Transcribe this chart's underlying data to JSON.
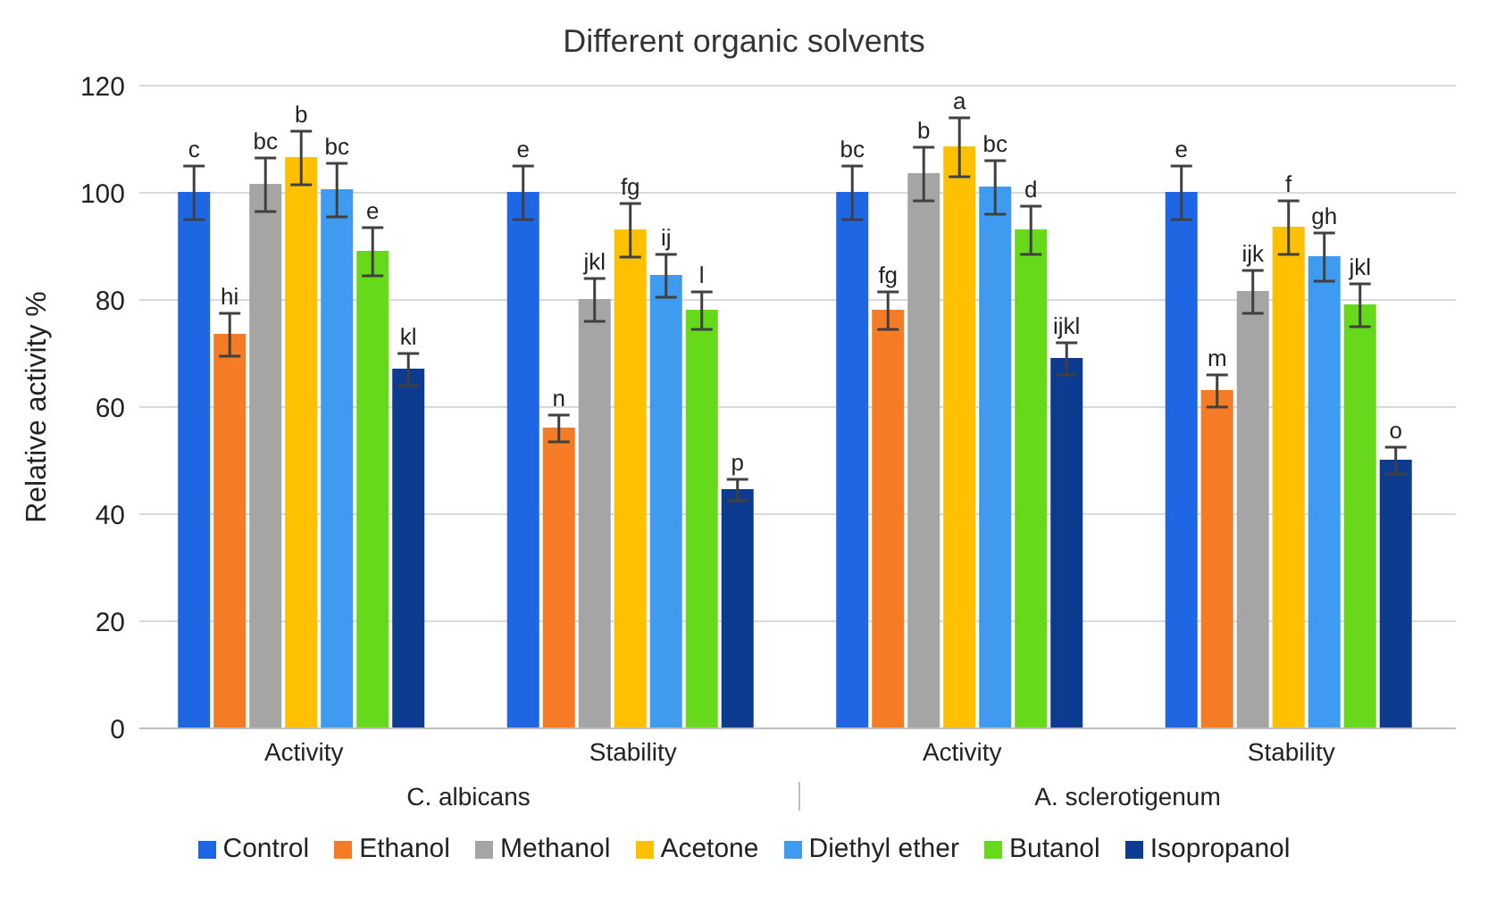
{
  "chart_data": {
    "type": "bar",
    "title": "Different organic solvents",
    "ylabel": "Relative activity %",
    "categories": [
      "Activity",
      "Stability",
      "Activity",
      "Stability"
    ],
    "annotations": [
      "C. albicans",
      "A. sclerotigenum"
    ],
    "ylim": [
      0,
      120
    ],
    "yticks": [
      0,
      20,
      40,
      60,
      80,
      100,
      120
    ],
    "grid": "y",
    "legend": "bottom",
    "series": [
      {
        "name": "Control",
        "color": "#1f66e5",
        "values": [
          100,
          100,
          100,
          100
        ],
        "errors": [
          5,
          5,
          5,
          5
        ],
        "value_labels": [
          "c",
          "e",
          "bc",
          "e"
        ]
      },
      {
        "name": "Ethanol",
        "color": "#f57c24",
        "values": [
          73.5,
          56,
          78,
          63
        ],
        "errors": [
          4,
          2.5,
          3.5,
          3
        ],
        "value_labels": [
          "hi",
          "n",
          "fg",
          "m"
        ]
      },
      {
        "name": "Methanol",
        "color": "#a5a5a5",
        "values": [
          101.5,
          80,
          103.5,
          81.5
        ],
        "errors": [
          5,
          4,
          5,
          4
        ],
        "value_labels": [
          "bc",
          "jkl",
          "b",
          "ijk"
        ]
      },
      {
        "name": "Acetone",
        "color": "#ffc000",
        "values": [
          106.5,
          93,
          108.5,
          93.5
        ],
        "errors": [
          5,
          5,
          5.5,
          5
        ],
        "value_labels": [
          "b",
          "fg",
          "a",
          "f"
        ]
      },
      {
        "name": "Diethyl ether",
        "color": "#3f9bf0",
        "values": [
          100.5,
          84.5,
          101,
          88
        ],
        "errors": [
          5,
          4,
          5,
          4.5
        ],
        "value_labels": [
          "bc",
          "ij",
          "bc",
          "gh"
        ]
      },
      {
        "name": "Butanol",
        "color": "#66d91a",
        "values": [
          89,
          78,
          93,
          79
        ],
        "errors": [
          4.5,
          3.5,
          4.5,
          4
        ],
        "value_labels": [
          "e",
          "l",
          "d",
          "jkl"
        ]
      },
      {
        "name": "Isopropanol",
        "color": "#0d3b8f",
        "values": [
          67,
          44.5,
          69,
          50
        ],
        "errors": [
          3,
          2,
          3,
          2.5
        ],
        "value_labels": [
          "kl",
          "p",
          "ijkl",
          "o"
        ]
      }
    ]
  }
}
